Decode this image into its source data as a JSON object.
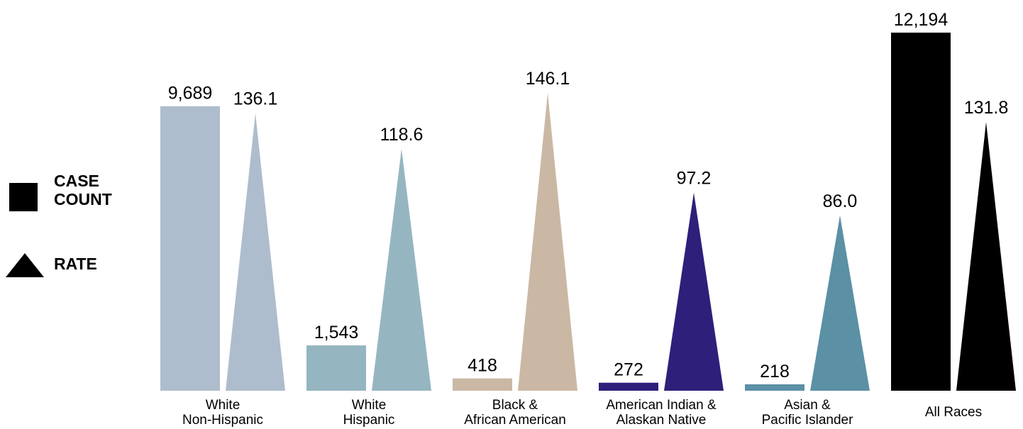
{
  "chart_data": {
    "type": "bar",
    "categories": [
      [
        "White",
        "Non-Hispanic"
      ],
      [
        "White",
        "Hispanic"
      ],
      [
        "Black &",
        "African American"
      ],
      [
        "American Indian &",
        "Alaskan Native"
      ],
      [
        "Asian &",
        "Pacific Islander"
      ],
      [
        "All Races"
      ]
    ],
    "series": [
      {
        "name": "CASE COUNT",
        "marker": "square",
        "values": [
          9689,
          1543,
          418,
          272,
          218,
          12194
        ],
        "labels": [
          "9,689",
          "1,543",
          "418",
          "272",
          "218",
          "12,194"
        ]
      },
      {
        "name": "RATE",
        "marker": "triangle",
        "values": [
          136.1,
          118.6,
          146.1,
          97.2,
          86.0,
          131.8
        ],
        "labels": [
          "136.1",
          "118.6",
          "146.1",
          "97.2",
          "86.0",
          "131.8"
        ]
      }
    ],
    "colors": [
      "#aebdcd",
      "#95b5c1",
      "#cab8a5",
      "#2e1f7a",
      "#5b90a5",
      "#000000"
    ],
    "legend": {
      "position": "left",
      "items": [
        {
          "label_lines": [
            "CASE",
            "COUNT"
          ],
          "icon": "square-icon"
        },
        {
          "label_lines": [
            "RATE"
          ],
          "icon": "triangle-icon"
        }
      ]
    },
    "title": "",
    "xlabel": "",
    "ylabel": "",
    "grid": false
  }
}
